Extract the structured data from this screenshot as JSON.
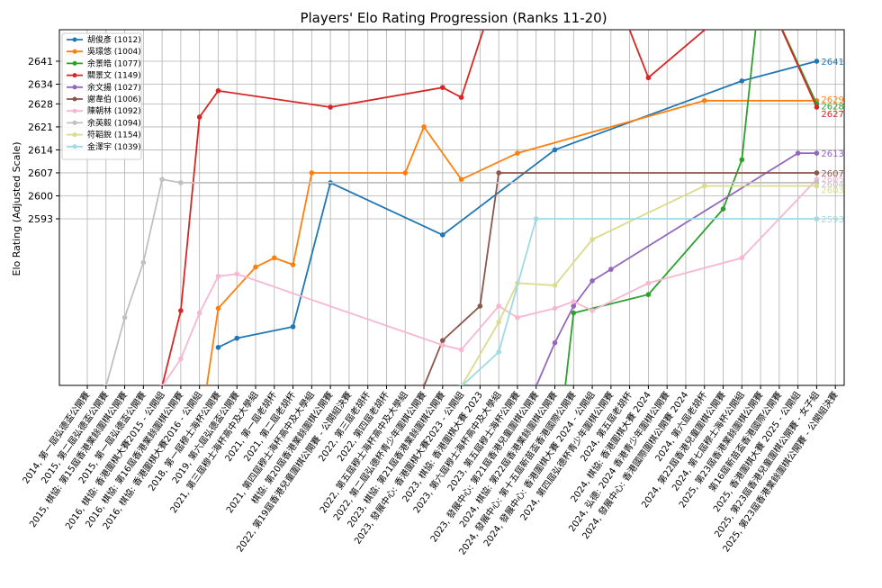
{
  "chart_data": {
    "type": "line",
    "title": "Players' Elo Rating Progression (Ranks 11-20)",
    "ylabel": "Elo Rating (Adjusted Scale)",
    "xlabel": "",
    "y_ticks": [
      2593,
      2600,
      2607,
      2614,
      2621,
      2628,
      2634,
      2641
    ],
    "grid": true,
    "legend_position": "top-left",
    "categories": [
      "2014, 第一屆弘德盃公開賽",
      "2015, 第二屆弘德盃公開賽",
      "2015, 棋協: 第15屆香港業餘圍棋公開賽",
      "2015, 第一屆弘德盃公開賽",
      "2016, 棋協: 香港圍棋大賽2015 - 公開組",
      "2016, 棋協: 第16屆香港業餘圍棋公開賽",
      "2016, 棋協: 香港圍棋大賽2016 - 公開組",
      "2018, 第一屆穆士海杯公開賽",
      "2019, 第六屆弘德盃公開賽",
      "2021, 第三屆穆士海杯高中及大學組",
      "2021, 第一屆老胡杯",
      "2021, 第二屆老胡杯",
      "2021, 第四屆穆士海杯高中及大學組",
      "棋協: 第20屆香港業餘圍棋公開賽",
      "2022, 第19屆香港兒童圍棋公開賽 - 公開組決賽",
      "2022, 第三屆老胡杯",
      "2022, 第四屆老胡杯",
      "2022, 第五屆穆士海杯高中及大學組",
      "2022, 第二屆弘德杯青少年圍棋公開賽",
      "2023, 棋協: 第21屆香港業餘圍棋公開賽",
      "2023, 發展中心: 香港圍棋大賽2023 - 公開組",
      "2023, 棋協: 香港圍棋大賽 2023",
      "2023, 第六屆穆士海杯高中及大學組",
      "2023, 第五屆穆士海杯公開賽",
      "2023, 發展中心: 第21屆香港兒童圍棋公開賽",
      "2024, 棋協: 第22屆香港業餘圍棋公開賽",
      "2024, 發展中心: 第十五屆新苗盃香港國際公開賽",
      "2024, 發展中心: 香港圍棋大賽 2024 - 公開組",
      "2024, 第四屆弘德杯青少年圍棋公開賽",
      "2024, 第五屆老胡杯",
      "2024, 棋協: 香港圍棋大賽 2024",
      "2024, 弘德: 2024 香港青少年圍棋公開賽",
      "2024, 發展中心: 香港國際圍棋公開賽 2024",
      "2024, 第六屆老胡杯",
      "2024, 第22屆香港兒童圍棋公開賽",
      "2024, 第七屆穆士海杯公開組",
      "2025, 第23屆香港業餘圍棋公開賽",
      "第16屆新苗盃香港國際公開賽",
      "2025, 香港圍棋大賽 2025 - 公開組",
      "2025, 第23屆香港兒童圍棋公開賽 - 女子組",
      "2025, 第23屆香港業餘圍棋公開賽 - 公開組決賽"
    ],
    "series": [
      {
        "name": "胡俊彥 (1012)",
        "color": "#1f77b4",
        "end_label": "2641",
        "points": [
          [
            7,
            2537
          ],
          [
            8,
            2541
          ],
          [
            11,
            2546
          ],
          [
            13,
            2604
          ],
          [
            19,
            2586
          ],
          [
            25,
            2614
          ],
          [
            35,
            2635
          ],
          [
            39,
            2641
          ]
        ]
      },
      {
        "name": "吳璟悠 (1004)",
        "color": "#ff7f0e",
        "end_label": "2629",
        "points": [
          [
            6,
            2499
          ],
          [
            7,
            2554
          ],
          [
            9,
            2572
          ],
          [
            10,
            2576
          ],
          [
            11,
            2573
          ],
          [
            12,
            2607
          ],
          [
            17,
            2607
          ],
          [
            18,
            2621
          ],
          [
            20,
            2605
          ],
          [
            23,
            2613
          ],
          [
            33,
            2629
          ],
          [
            39,
            2629
          ]
        ]
      },
      {
        "name": "余景皓 (1077)",
        "color": "#2ca02c",
        "end_label": "2628",
        "points": [
          [
            25,
            2480
          ],
          [
            26,
            2552
          ],
          [
            30,
            2560
          ],
          [
            34,
            2596
          ],
          [
            35,
            2611
          ],
          [
            36,
            2665
          ],
          [
            39,
            2628
          ]
        ]
      },
      {
        "name": "關景文 (1149)",
        "color": "#d62728",
        "end_label": "2627",
        "points": [
          [
            4,
            2520
          ],
          [
            5,
            2553
          ],
          [
            6,
            2624
          ],
          [
            7,
            2632
          ],
          [
            13,
            2627
          ],
          [
            19,
            2633
          ],
          [
            20,
            2630
          ],
          [
            22,
            2665
          ],
          [
            28,
            2665
          ],
          [
            30,
            2636
          ],
          [
            36,
            2665
          ],
          [
            39,
            2627
          ]
        ]
      },
      {
        "name": "余文揚 (1027)",
        "color": "#9467bd",
        "end_label": "2613",
        "points": [
          [
            24,
            2520
          ],
          [
            25,
            2539
          ],
          [
            26,
            2555
          ],
          [
            27,
            2566
          ],
          [
            28,
            2571
          ],
          [
            38,
            2613
          ],
          [
            39,
            2613
          ]
        ]
      },
      {
        "name": "謝韋伯 (1006)",
        "color": "#8c564b",
        "end_label": "2607",
        "points": [
          [
            18,
            2520
          ],
          [
            19,
            2540
          ],
          [
            21,
            2555
          ],
          [
            22,
            2607
          ],
          [
            39,
            2607
          ]
        ]
      },
      {
        "name": "陳朝林 (1092)",
        "color": "#f7b6d2",
        "end_label": "2605",
        "points": [
          [
            4,
            2520
          ],
          [
            5,
            2532
          ],
          [
            6,
            2552
          ],
          [
            7,
            2568
          ],
          [
            8,
            2569
          ],
          [
            19,
            2538
          ],
          [
            20,
            2536
          ],
          [
            22,
            2555
          ],
          [
            23,
            2550
          ],
          [
            25,
            2554
          ],
          [
            26,
            2557
          ],
          [
            27,
            2553
          ],
          [
            30,
            2565
          ],
          [
            35,
            2576
          ],
          [
            39,
            2605
          ]
        ]
      },
      {
        "name": "余英毅 (1094)",
        "color": "#c0c0c0",
        "end_label": "2604",
        "points": [
          [
            1,
            2520
          ],
          [
            2,
            2550
          ],
          [
            3,
            2574
          ],
          [
            4,
            2605
          ],
          [
            5,
            2604
          ],
          [
            39,
            2604
          ]
        ]
      },
      {
        "name": "符韜銳 (1154)",
        "color": "#dbdb8d",
        "end_label": "2603",
        "points": [
          [
            20,
            2520
          ],
          [
            22,
            2548
          ],
          [
            23,
            2565
          ],
          [
            25,
            2564
          ],
          [
            27,
            2584
          ],
          [
            33,
            2603
          ],
          [
            39,
            2603
          ]
        ]
      },
      {
        "name": "金澤宇 (1039)",
        "color": "#9edae5",
        "end_label": "2593",
        "points": [
          [
            20,
            2520
          ],
          [
            22,
            2535
          ],
          [
            24,
            2593
          ],
          [
            39,
            2593
          ]
        ]
      }
    ]
  }
}
